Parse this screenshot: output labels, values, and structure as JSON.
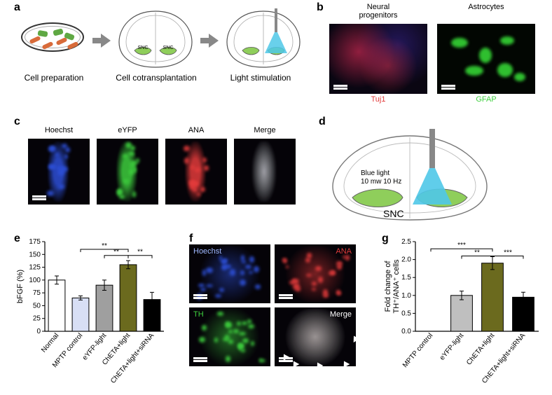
{
  "panel_a": {
    "label": "a",
    "steps": [
      "Cell preparation",
      "Cell cotransplantation",
      "Light stimulation"
    ],
    "snc_label": "SNC",
    "colors": {
      "red_cell": "#d86b3a",
      "green_cell": "#5fa843",
      "snc_fill": "#8fce5b",
      "light_cone": "#4fc8e8",
      "outline": "#333333"
    }
  },
  "panel_b": {
    "label": "b",
    "titles": [
      "Neural\nprogenitors",
      "Astrocytes"
    ],
    "markers": [
      "Tuj1",
      "GFAP"
    ],
    "marker_colors": [
      "#e23b3b",
      "#3ecf3e"
    ],
    "bg": "#050308"
  },
  "panel_c": {
    "label": "c",
    "titles": [
      "Hoechst",
      "eYFP",
      "ANA",
      "Merge"
    ],
    "colors": {
      "hoechst": "#2d4fd6",
      "eyfp": "#3ecf3e",
      "ana": "#e23b3b"
    },
    "bg": "#050308"
  },
  "panel_d": {
    "label": "d",
    "snc_label": "SNC",
    "light_text": "Blue light\n10 mw 10 Hz",
    "colors": {
      "snc_fill": "#8fce5b",
      "light_cone": "#4fc8e8",
      "outline": "#666666"
    }
  },
  "panel_e": {
    "label": "e",
    "type": "bar",
    "ylabel": "bFGF (%)",
    "ylim": [
      0,
      175
    ],
    "ytick_step": 25,
    "categories": [
      "Normal",
      "MPTP control",
      "eYFP-light",
      "ChETA+light",
      "ChETA+light+siRNA"
    ],
    "values": [
      100,
      65,
      90,
      130,
      62
    ],
    "errors": [
      8,
      4,
      10,
      8,
      14
    ],
    "bar_colors": [
      "#ffffff",
      "#d8dff5",
      "#9f9f9f",
      "#6b6a1e",
      "#000000"
    ],
    "sig": [
      {
        "from": 2,
        "to": 3,
        "y": 148,
        "text": "**"
      },
      {
        "from": 1,
        "to": 3,
        "y": 160,
        "text": "**"
      },
      {
        "from": 3,
        "to": 4,
        "y": 148,
        "text": "**"
      }
    ],
    "axis_color": "#000000",
    "label_fontsize": 10,
    "bar_width": 0.7
  },
  "panel_f": {
    "label": "f",
    "titles": [
      "Hoechst",
      "ANA",
      "TH",
      "Merge"
    ],
    "colors": {
      "hoechst": "#2d4fd6",
      "ana": "#e23b3b",
      "th": "#3ecf3e",
      "arrow": "#ffffff"
    },
    "bg": "#050308"
  },
  "panel_g": {
    "label": "g",
    "type": "bar",
    "ylabel": "Fold change of\nTH⁺/ANA⁺ cells",
    "ylim": [
      0.0,
      2.5
    ],
    "ytick_step": 0.5,
    "categories": [
      "MPTP control",
      "eYFP-light",
      "ChETA+light",
      "ChETA+light+siRNA"
    ],
    "values": [
      0,
      1.0,
      1.9,
      0.95
    ],
    "errors": [
      0,
      0.12,
      0.18,
      0.14
    ],
    "bar_colors": [
      "#ffffff",
      "#bfbfbf",
      "#6b6a1e",
      "#000000"
    ],
    "sig": [
      {
        "from": 1,
        "to": 2,
        "y": 2.1,
        "text": "**"
      },
      {
        "from": 0,
        "to": 2,
        "y": 2.3,
        "text": "***"
      },
      {
        "from": 2,
        "to": 3,
        "y": 2.1,
        "text": "***"
      }
    ],
    "axis_color": "#000000",
    "label_fontsize": 10,
    "bar_width": 0.7
  }
}
